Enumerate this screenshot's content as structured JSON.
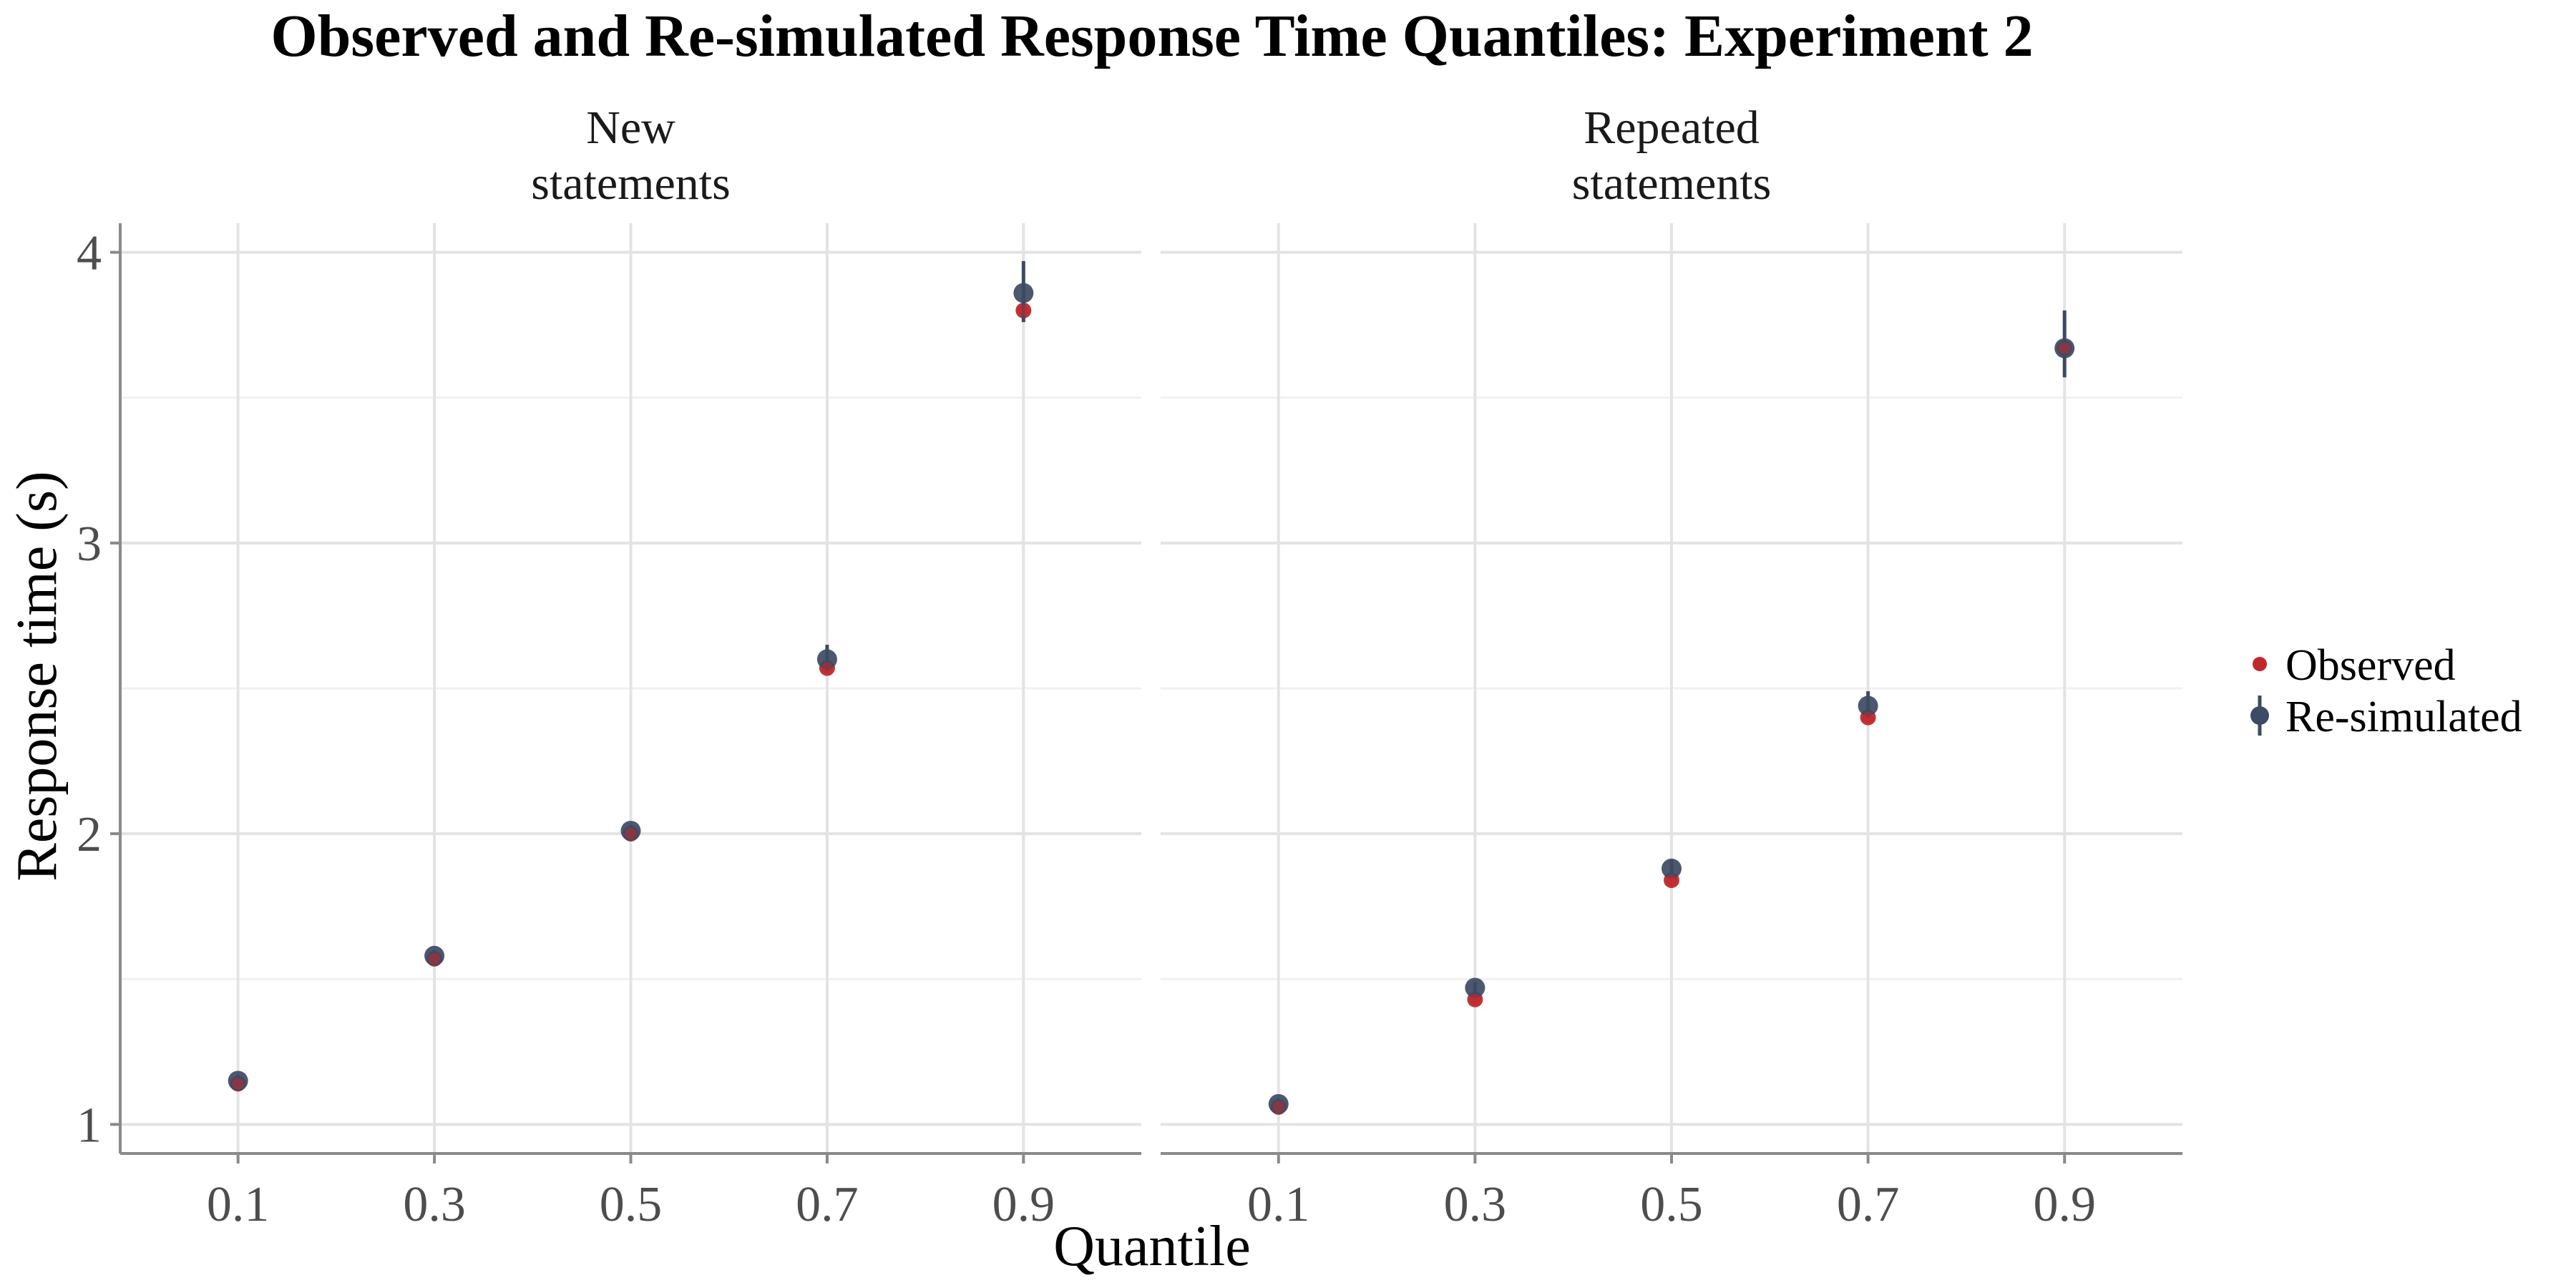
{
  "chart_data": {
    "type": "scatter",
    "title": "Observed and Re-simulated Response Time Quantiles: Experiment 2",
    "xlabel": "Quantile",
    "ylabel": "Response time (s)",
    "x_ticks": [
      "0.1",
      "0.3",
      "0.5",
      "0.7",
      "0.9"
    ],
    "y_ticks": [
      "1",
      "2",
      "3",
      "4"
    ],
    "xlim": [
      -0.02,
      1.02
    ],
    "ylim": [
      0.9,
      4.1
    ],
    "grid": true,
    "legend_position": "right",
    "colors": {
      "observed": "#c0282d",
      "resimulated": "#3d4a63"
    },
    "legend": [
      {
        "key": "observed",
        "label": "Observed"
      },
      {
        "key": "resimulated",
        "label": "Re-simulated"
      }
    ],
    "panels": [
      {
        "strip": [
          "New",
          "statements"
        ],
        "series": [
          {
            "name": "Observed",
            "x": [
              0.1,
              0.3,
              0.5,
              0.7,
              0.9
            ],
            "y": [
              1.14,
              1.57,
              2.0,
              2.57,
              3.8
            ]
          },
          {
            "name": "Re-simulated",
            "x": [
              0.1,
              0.3,
              0.5,
              0.7,
              0.9
            ],
            "y": [
              1.15,
              1.58,
              2.01,
              2.6,
              3.86
            ],
            "lower": [
              1.13,
              1.56,
              1.99,
              2.56,
              3.76
            ],
            "upper": [
              1.17,
              1.6,
              2.03,
              2.65,
              3.97
            ]
          }
        ]
      },
      {
        "strip": [
          "Repeated",
          "statements"
        ],
        "series": [
          {
            "name": "Observed",
            "x": [
              0.1,
              0.3,
              0.5,
              0.7,
              0.9
            ],
            "y": [
              1.06,
              1.43,
              1.84,
              2.4,
              3.67
            ]
          },
          {
            "name": "Re-simulated",
            "x": [
              0.1,
              0.3,
              0.5,
              0.7,
              0.9
            ],
            "y": [
              1.07,
              1.47,
              1.88,
              2.44,
              3.67
            ],
            "lower": [
              1.05,
              1.45,
              1.85,
              2.4,
              3.57
            ],
            "upper": [
              1.09,
              1.49,
              1.91,
              2.49,
              3.8
            ]
          }
        ]
      }
    ]
  }
}
